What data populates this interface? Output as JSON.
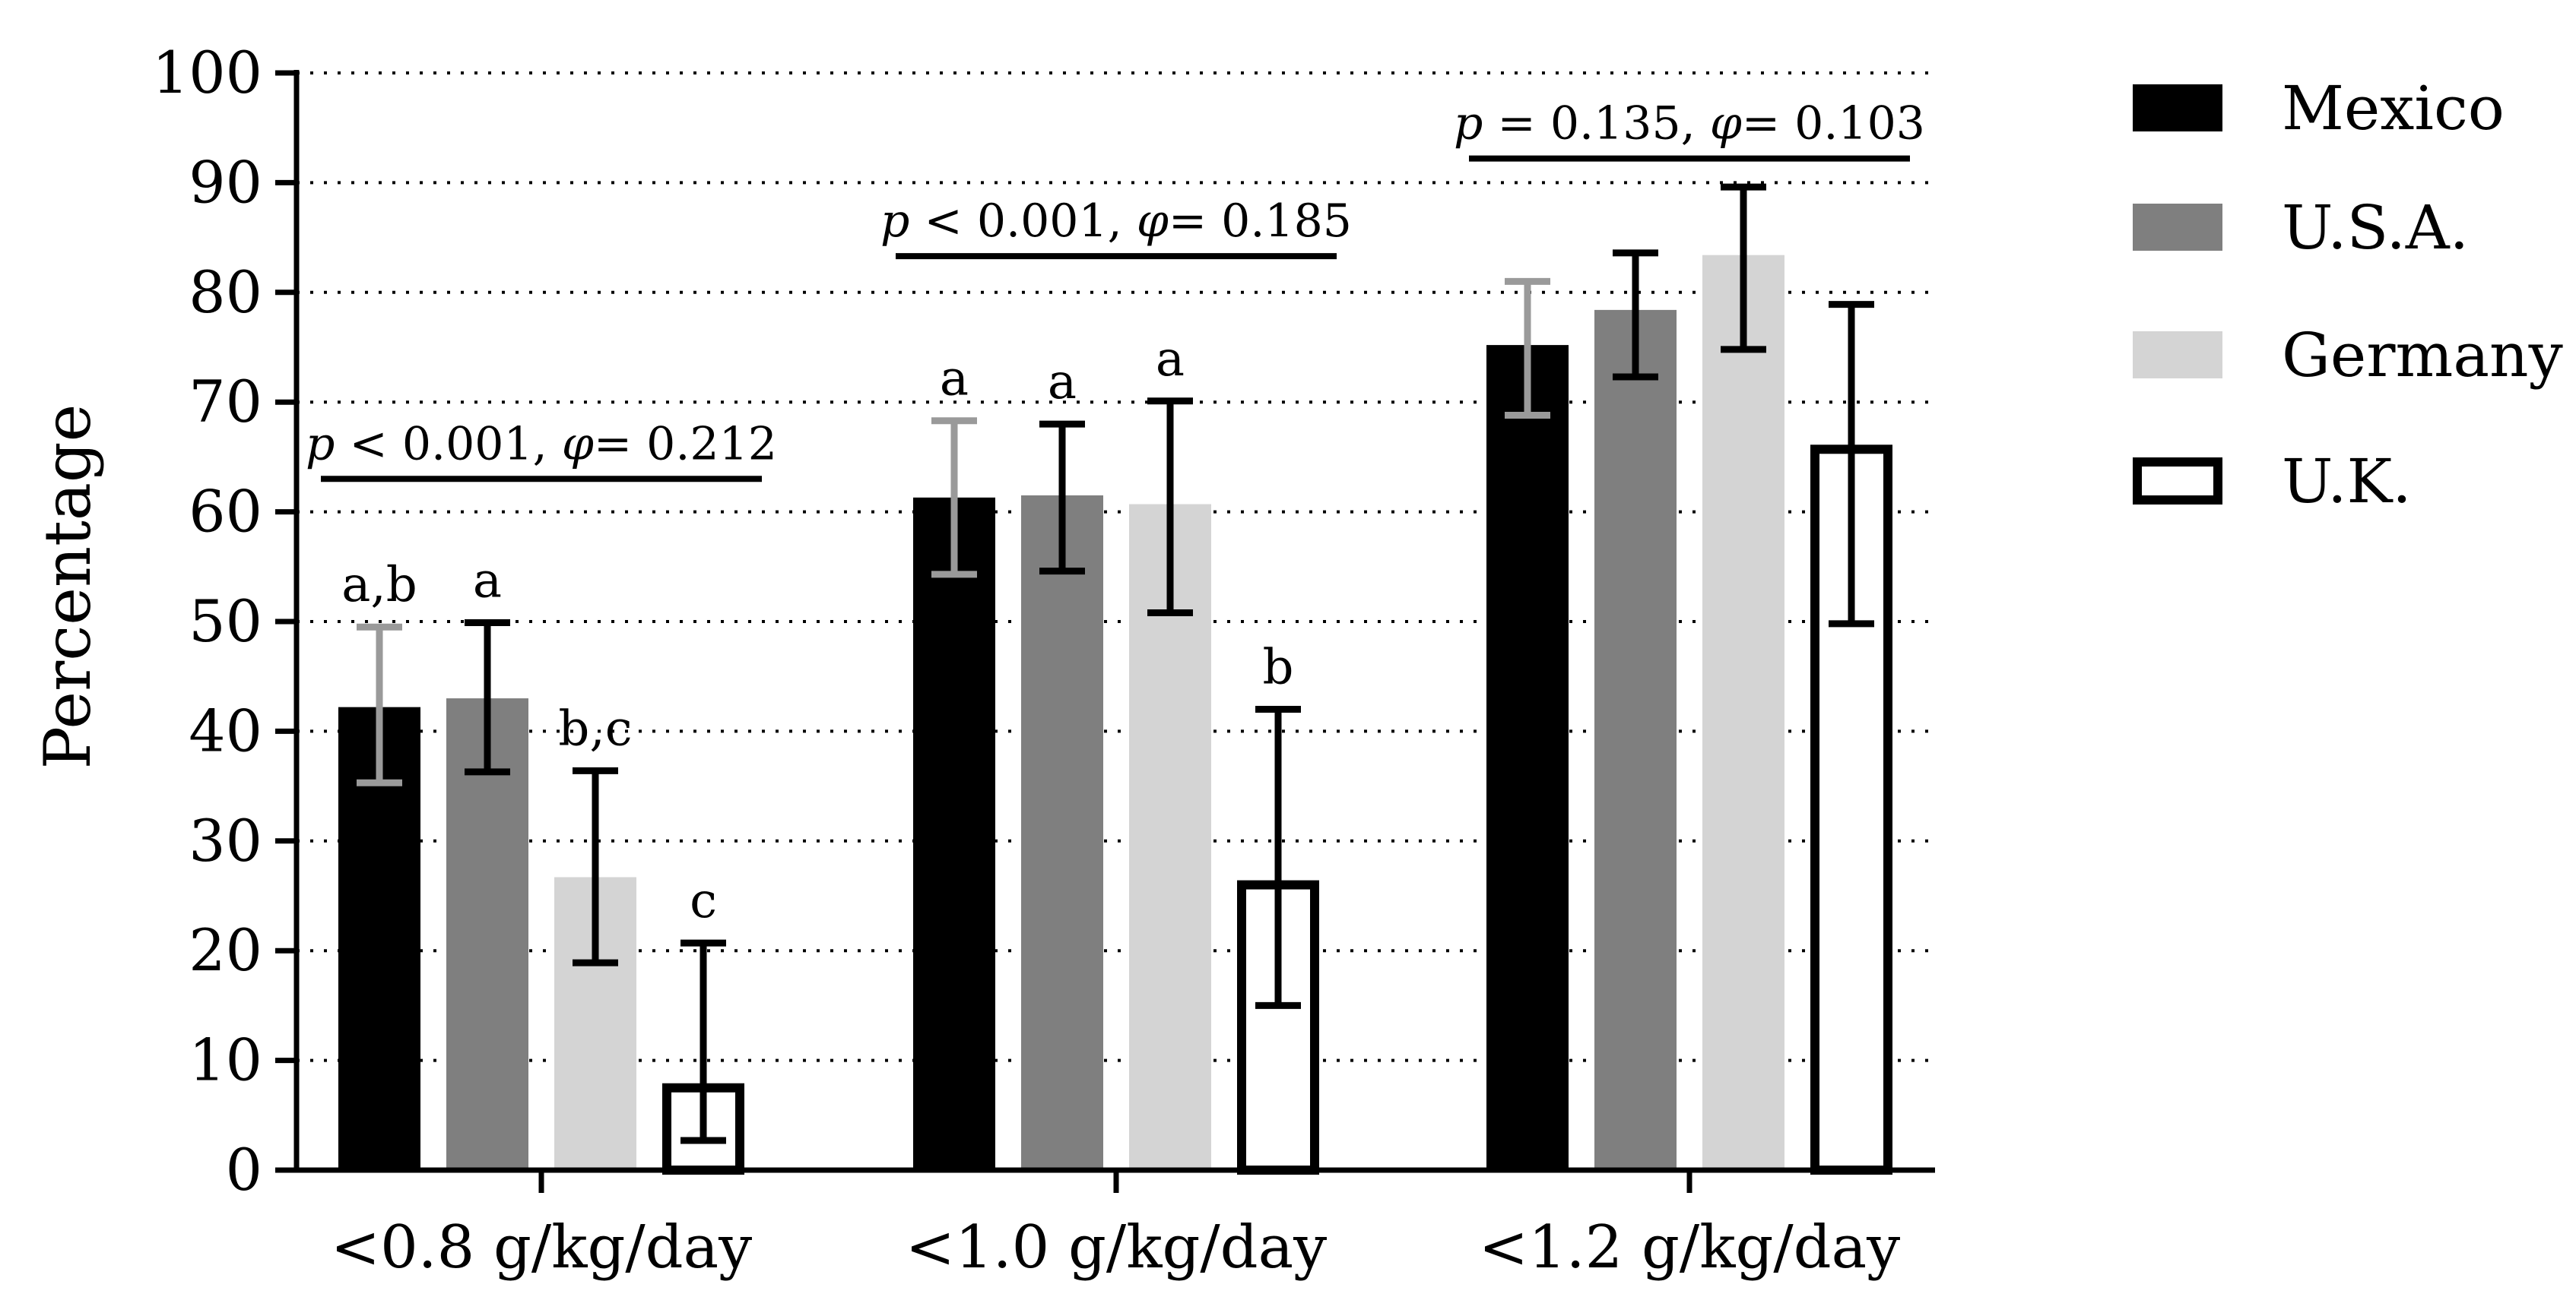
{
  "chart_data": {
    "type": "bar",
    "ylabel": "Percentage",
    "ylim": [
      0,
      100
    ],
    "ytick_step": 10,
    "grid": true,
    "categories": [
      "<0.8 g/kg/day",
      "<1.0 g/kg/day",
      "<1.2 g/kg/day"
    ],
    "series": [
      {
        "name": "Mexico",
        "color": "#000000",
        "outline": false,
        "errorbar_color": "#9a9a9a",
        "values": [
          42.2,
          61.3,
          75.2
        ],
        "err_low": [
          35.3,
          54.3,
          68.8
        ],
        "err_high": [
          49.5,
          68.3,
          81.0
        ],
        "letters": [
          "a,b",
          "a",
          ""
        ]
      },
      {
        "name": "U.S.A.",
        "color": "#7f7f7f",
        "outline": false,
        "errorbar_color": "#000000",
        "values": [
          43.0,
          61.5,
          78.4
        ],
        "err_low": [
          36.3,
          54.6,
          72.3
        ],
        "err_high": [
          49.9,
          68.0,
          83.6
        ],
        "letters": [
          "a",
          "a",
          ""
        ]
      },
      {
        "name": "Germany",
        "color": "#d4d4d4",
        "outline": false,
        "errorbar_color": "#000000",
        "values": [
          26.7,
          60.7,
          83.4
        ],
        "err_low": [
          18.9,
          50.8,
          74.8
        ],
        "err_high": [
          36.4,
          70.1,
          89.6
        ],
        "letters": [
          "b,c",
          "a",
          ""
        ]
      },
      {
        "name": "U.K.",
        "color": "#ffffff",
        "outline": true,
        "errorbar_color": "#000000",
        "values": [
          7.5,
          26.0,
          65.7
        ],
        "err_low": [
          2.7,
          15.0,
          49.8
        ],
        "err_high": [
          20.7,
          42.0,
          78.9
        ],
        "letters": [
          "c",
          "b",
          ""
        ]
      }
    ],
    "annotations": [
      {
        "category": 0,
        "text": "p < 0.001, φ= 0.212",
        "level": 63.0
      },
      {
        "category": 1,
        "text": "p < 0.001, φ= 0.185",
        "level": 83.3
      },
      {
        "category": 2,
        "text": "p = 0.135, φ= 0.103",
        "level": 92.2
      }
    ],
    "legend_position": "right"
  }
}
